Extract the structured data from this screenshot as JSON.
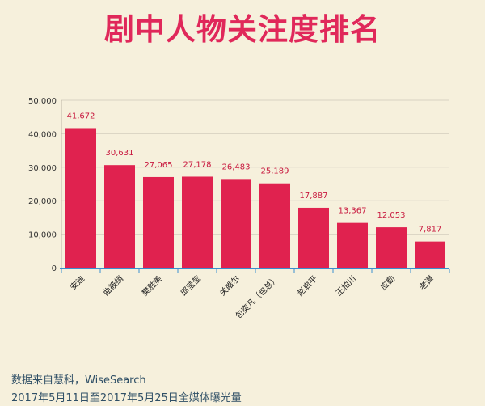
{
  "title": "剧中人物关注度排名",
  "source_line1": "数据来自慧科，WiseSearch",
  "source_line2": "2017年5月11日至2017年5月25日全媒体曝光量",
  "colors": {
    "bar": "#e0224f",
    "label": "#c8183e",
    "background": "#f6f0dc",
    "axis": "#3a8fd0"
  },
  "chart_data": {
    "type": "bar",
    "title": "剧中人物关注度排名",
    "categories": [
      "安迪",
      "曲筱绡",
      "樊胜美",
      "邱莹莹",
      "关雎尔",
      "包奕凡（包总）",
      "赵启平",
      "王柏川",
      "应勤",
      "老谭"
    ],
    "values": [
      41672,
      30631,
      27065,
      27178,
      26483,
      25189,
      17887,
      13367,
      12053,
      7817
    ],
    "value_labels": [
      "41,672",
      "30,631",
      "27,065",
      "27,178",
      "26,483",
      "25,189",
      "17,887",
      "13,367",
      "12,053",
      "7,817"
    ],
    "ylim": [
      0,
      50000
    ],
    "yticks": [
      0,
      10000,
      20000,
      30000,
      40000,
      50000
    ],
    "ytick_labels": [
      "0",
      "10,000",
      "20,000",
      "30,000",
      "40,000",
      "50,000"
    ],
    "grid": true,
    "xlabel": "",
    "ylabel": ""
  }
}
